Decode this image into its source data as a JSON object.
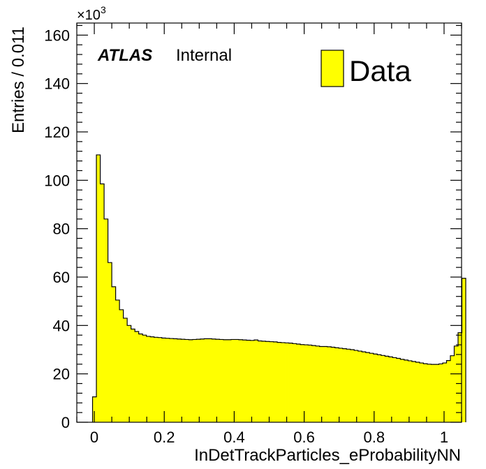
{
  "chart_data": {
    "type": "bar",
    "style": "histogram-filled",
    "xlabel": "InDetTrackParticles_eProbabilityNN",
    "ylabel": "Entries / 0.011",
    "y_multiplier": "×10",
    "y_multiplier_exp": "3",
    "experiment": "ATLAS",
    "status": "Internal",
    "xlim": [
      -0.05,
      1.05
    ],
    "ylim": [
      0,
      165
    ],
    "bin_start": -0.005,
    "bin_width": 0.011,
    "x_ticks": [
      0,
      0.2,
      0.4,
      0.6,
      0.8,
      1
    ],
    "x_tick_labels": [
      "0",
      "0.2",
      "0.4",
      "0.6",
      "0.8",
      "1"
    ],
    "y_ticks": [
      0,
      20,
      40,
      60,
      80,
      100,
      120,
      140,
      160
    ],
    "y_tick_labels": [
      "0",
      "20",
      "40",
      "60",
      "80",
      "100",
      "120",
      "140",
      "160"
    ],
    "fill_color": "#ffff00",
    "line_color": "#000000",
    "series": [
      {
        "name": "Data",
        "values": [
          10.5,
          110.5,
          98.5,
          84,
          66,
          56,
          50.5,
          46.5,
          43,
          40,
          38.5,
          37.5,
          36.5,
          36,
          35.5,
          35.3,
          35.1,
          35,
          34.8,
          34.7,
          34.6,
          34.5,
          34.4,
          34.3,
          34.2,
          34.1,
          34.2,
          34.3,
          34.4,
          34.5,
          34.5,
          34.4,
          34.3,
          34.2,
          34.1,
          34.1,
          34.2,
          34.2,
          34.1,
          34,
          33.9,
          33.8,
          34,
          33.6,
          33.5,
          33.4,
          33.3,
          33.2,
          33,
          32.9,
          32.8,
          32.7,
          32.5,
          32.3,
          32.1,
          32,
          31.9,
          31.7,
          31.5,
          31.3,
          31.3,
          31.2,
          31,
          30.8,
          30.6,
          30.4,
          30.2,
          30,
          29.7,
          29.4,
          29.1,
          28.8,
          28.5,
          28.2,
          27.9,
          27.6,
          27.3,
          27,
          26.7,
          26.4,
          26,
          25.7,
          25.4,
          25.1,
          24.8,
          24.5,
          24.2,
          24,
          23.9,
          23.9,
          24.1,
          24.5,
          25.5,
          27.5,
          31.5,
          37,
          59.5
        ]
      }
    ]
  }
}
